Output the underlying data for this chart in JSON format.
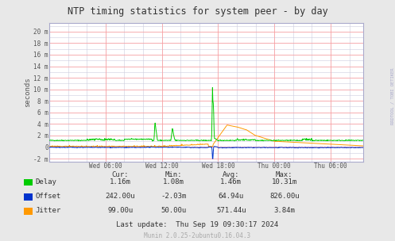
{
  "title": "NTP timing statistics for system peer - by day",
  "ylabel": "seconds",
  "right_label": "RRDTOOL / TOBI OETIKER",
  "bg_color": "#e8e8e8",
  "plot_bg_color": "#ffffff",
  "grid_major_color": "#ff9999",
  "grid_minor_color": "#ccccdd",
  "border_color": "#aaaacc",
  "yticks_labels": [
    "20 m",
    "18 m",
    "16 m",
    "14 m",
    "12 m",
    "10 m",
    "8 m",
    "6 m",
    "4 m",
    "2 m",
    "0",
    "-2 m"
  ],
  "yticks_values": [
    0.02,
    0.018,
    0.016,
    0.014,
    0.012,
    0.01,
    0.008,
    0.006,
    0.004,
    0.002,
    0.0,
    -0.002
  ],
  "ymin": -0.0025,
  "ymax": 0.0215,
  "xtick_labels": [
    "Wed 06:00",
    "Wed 12:00",
    "Wed 18:00",
    "Thu 00:00",
    "Thu 06:00"
  ],
  "xtick_hours": [
    6,
    12,
    18,
    24,
    30
  ],
  "xmin": 0,
  "xmax": 33.5,
  "delay_color": "#00cc00",
  "offset_color": "#0033cc",
  "jitter_color": "#ff9900",
  "legend_items": [
    "Delay",
    "Offset",
    "Jitter"
  ],
  "stats_headers": [
    "Cur:",
    "Min:",
    "Avg:",
    "Max:"
  ],
  "stats_delay": [
    "1.16m",
    "1.08m",
    "1.46m",
    "10.31m"
  ],
  "stats_offset": [
    "242.00u",
    "-2.03m",
    "64.94u",
    "826.00u"
  ],
  "stats_jitter": [
    "99.00u",
    "50.00u",
    "571.44u",
    "3.84m"
  ],
  "last_update": "Last update:  Thu Sep 19 09:30:17 2024",
  "munin_version": "Munin 2.0.25-2ubuntu0.16.04.3"
}
